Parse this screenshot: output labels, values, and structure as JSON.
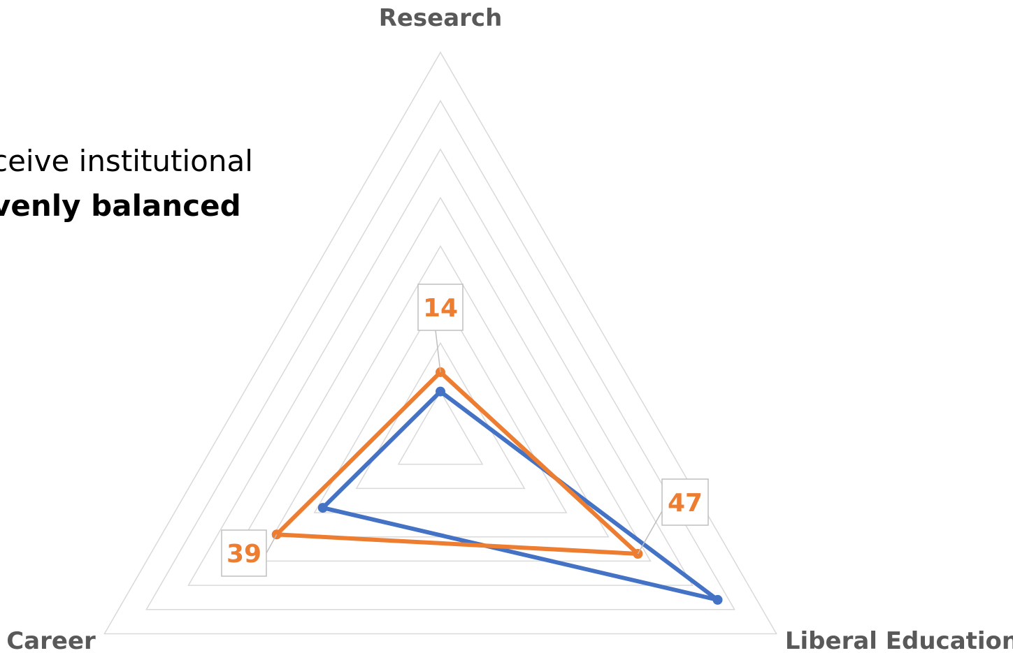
{
  "caption": {
    "line1": "ceive institutional",
    "line2": "venly balanced"
  },
  "chart_data": {
    "type": "radar",
    "axes": [
      "Research",
      "Liberal Education",
      "Career"
    ],
    "rmax": 80,
    "grid_steps": 8,
    "grid": true,
    "series": [
      {
        "values": [
          14,
          47,
          39
        ],
        "color": "#ed7d31",
        "data_labels": [
          "14",
          "47",
          "39"
        ]
      },
      {
        "values": [
          10,
          66,
          28
        ],
        "color": "#4472c4"
      }
    ]
  }
}
